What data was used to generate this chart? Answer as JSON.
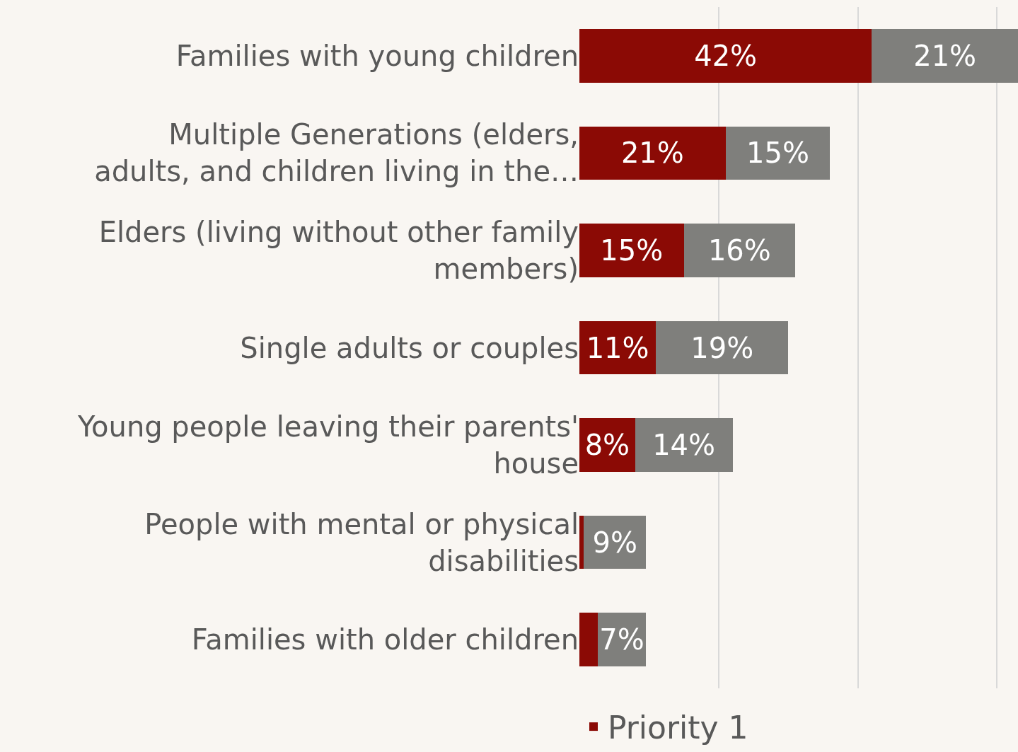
{
  "chart_data": {
    "type": "bar",
    "orientation": "horizontal",
    "stacked": true,
    "categories": [
      "Families with young children",
      "Multiple Generations (elders, adults, and children living in the…",
      "Elders (living without other family members)",
      "Single adults or couples",
      "Young people leaving their parents' house",
      "People with mental or physical disabilities",
      "Families with older children"
    ],
    "series": [
      {
        "name": "Priority 1",
        "color": "#8b0a05",
        "values": [
          42,
          21,
          15,
          11,
          8,
          0.6,
          2.6
        ],
        "value_labels": [
          "42%",
          "21%",
          "15%",
          "11%",
          "8%",
          null,
          null
        ]
      },
      {
        "color": "#7f7f7c",
        "values": [
          21,
          15,
          16,
          19,
          14,
          9,
          7
        ],
        "value_labels": [
          "21%",
          "15%",
          "16%",
          "19%",
          "14%",
          "9%",
          "7%"
        ]
      }
    ],
    "xlim": [
      0,
      63
    ],
    "xticks": [
      {
        "value": 20,
        "label": null
      },
      {
        "value": 40,
        "label": null
      },
      {
        "value": 60,
        "label": null
      }
    ],
    "tick_labels": "y",
    "grid": "x",
    "legend": "bottom"
  }
}
